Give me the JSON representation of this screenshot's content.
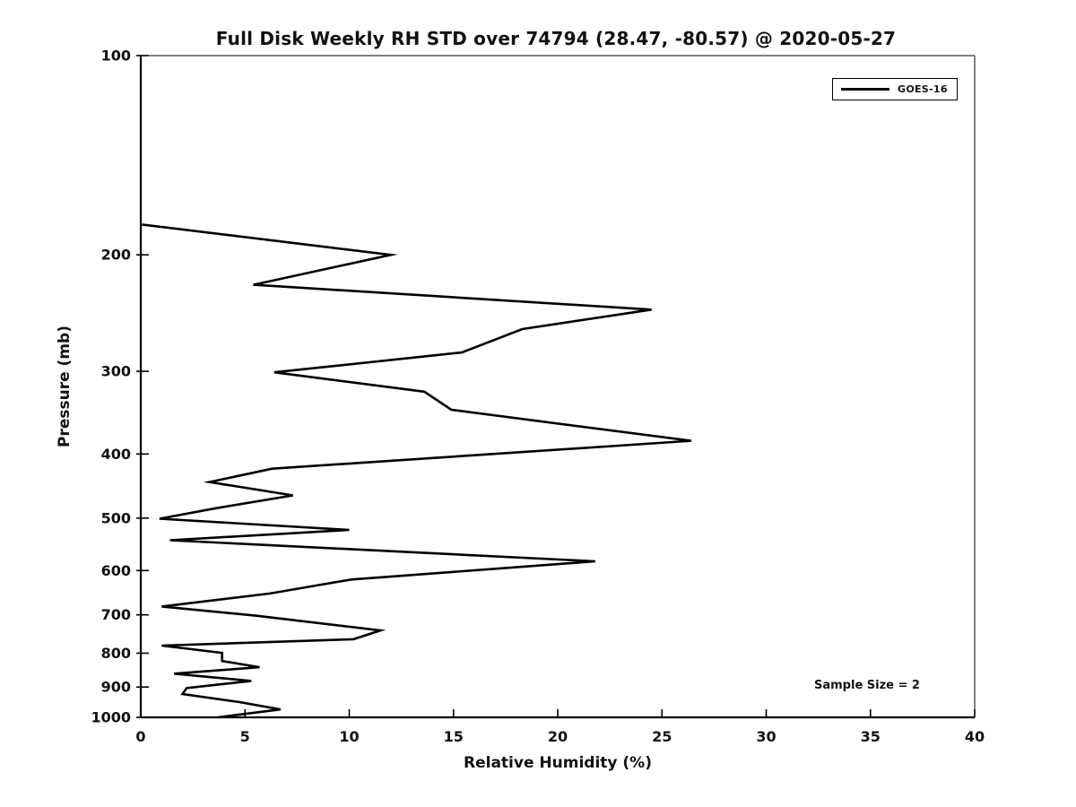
{
  "chart_data": {
    "type": "line",
    "title": "Full Disk Weekly RH STD over 74794 (28.47, -80.57) @ 2020-05-27",
    "xlabel": "Relative Humidity (%)",
    "ylabel": "Pressure (mb)",
    "xlim": [
      0,
      40
    ],
    "ylim": [
      100,
      1000
    ],
    "y_scale": "log",
    "y_inverted": true,
    "grid": false,
    "x_ticks": [
      0,
      5,
      10,
      15,
      20,
      25,
      30,
      35,
      40
    ],
    "y_ticks": [
      100,
      200,
      300,
      400,
      500,
      600,
      700,
      800,
      900,
      1000
    ],
    "legend": {
      "position": "top-right",
      "entries": [
        {
          "label": "GOES-16",
          "color": "#000000",
          "line_width": 3
        }
      ]
    },
    "annotation": "Sample Size = 2",
    "axis_color": "#000000",
    "line_color": "#000000",
    "series": [
      {
        "name": "GOES-16",
        "color": "#000000",
        "points_format": [
          "relative_humidity_pct",
          "pressure_mb"
        ],
        "points": [
          [
            0.05,
            180
          ],
          [
            12.0,
            200
          ],
          [
            5.4,
            222
          ],
          [
            24.5,
            242
          ],
          [
            18.3,
            259
          ],
          [
            15.4,
            281
          ],
          [
            6.4,
            301
          ],
          [
            13.6,
            322
          ],
          [
            14.9,
            343
          ],
          [
            26.4,
            382
          ],
          [
            6.3,
            421
          ],
          [
            3.3,
            441
          ],
          [
            7.3,
            462
          ],
          [
            3.6,
            483
          ],
          [
            0.9,
            501
          ],
          [
            10.0,
            521
          ],
          [
            1.4,
            540
          ],
          [
            21.8,
            581
          ],
          [
            10.1,
            619
          ],
          [
            6.2,
            650
          ],
          [
            1.0,
            680
          ],
          [
            5.5,
            702
          ],
          [
            11.5,
            739
          ],
          [
            10.2,
            762
          ],
          [
            1.0,
            779
          ],
          [
            3.9,
            799
          ],
          [
            3.9,
            822
          ],
          [
            5.7,
            840
          ],
          [
            1.6,
            859
          ],
          [
            5.3,
            881
          ],
          [
            2.2,
            903
          ],
          [
            2.0,
            922
          ],
          [
            4.7,
            948
          ],
          [
            6.7,
            973
          ],
          [
            3.7,
            1000
          ]
        ]
      }
    ]
  }
}
